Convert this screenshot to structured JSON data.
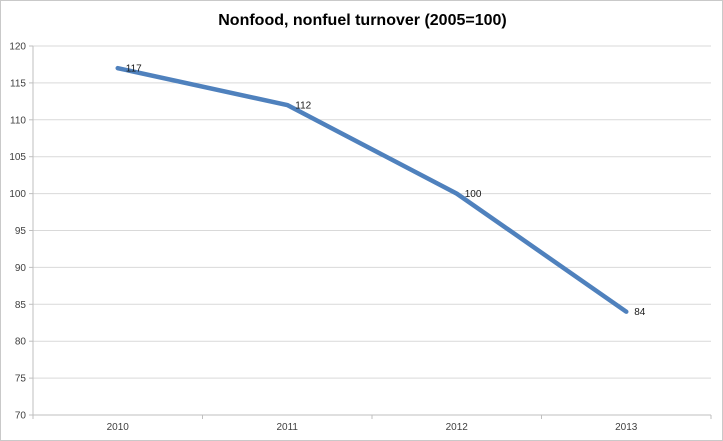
{
  "chart_data": {
    "type": "line",
    "title": "Nonfood, nonfuel turnover (2005=100)",
    "categories": [
      "2010",
      "2011",
      "2012",
      "2013"
    ],
    "series": [
      {
        "name": "Nonfood, nonfuel turnover",
        "values": [
          117,
          112,
          100,
          84
        ]
      }
    ],
    "data_labels": [
      "117",
      "112",
      "100",
      "84"
    ],
    "xlabel": "",
    "ylabel": "",
    "ylim": [
      70,
      120
    ],
    "ytick_step": 5,
    "grid": true,
    "legend_position": "none",
    "colors": {
      "series": "#4F81BD",
      "gridline": "#D9D9D9",
      "axis": "#BFBFBF",
      "axis_label": "#404040",
      "data_label": "#1A1A1A",
      "frame_border": "#C9C9C9",
      "background": "#FFFFFF"
    }
  }
}
